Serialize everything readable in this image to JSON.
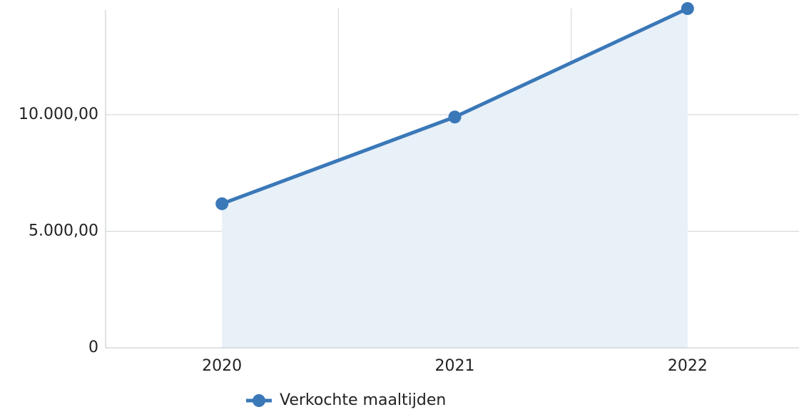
{
  "chart_data": {
    "type": "line",
    "categories": [
      "2020",
      "2021",
      "2022"
    ],
    "series": [
      {
        "name": "Verkochte maaltijden",
        "color": "#3a78b8",
        "fill": "#e8f0f8",
        "values": [
          6180,
          9900,
          14550
        ]
      }
    ],
    "ylim": [
      0,
      14550
    ],
    "yticks": [
      0,
      {
        "value": 5000,
        "label": "5.000,00"
      },
      {
        "value": 10000,
        "label": "10.000,00"
      }
    ],
    "grid": true,
    "legend": "bottom"
  }
}
